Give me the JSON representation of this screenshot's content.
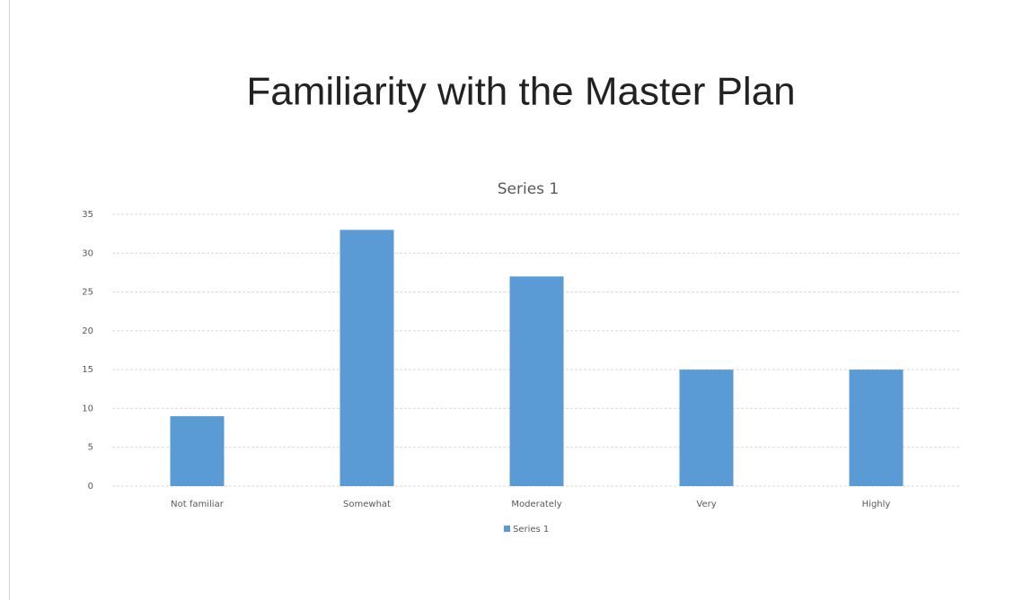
{
  "chart_data": {
    "type": "bar",
    "title": "Familiarity with the Master Plan",
    "subtitle": "Series 1",
    "categories": [
      "Not familiar",
      "Somewhat",
      "Moderately",
      "Very",
      "Highly"
    ],
    "series": [
      {
        "name": "Series 1",
        "color": "#5b9bd5",
        "values": [
          9,
          33,
          27,
          15,
          15
        ]
      }
    ],
    "ylim": [
      0,
      35
    ],
    "yticks": [
      0,
      5,
      10,
      15,
      20,
      25,
      30,
      35
    ],
    "grid": true,
    "legend": "bottom"
  }
}
